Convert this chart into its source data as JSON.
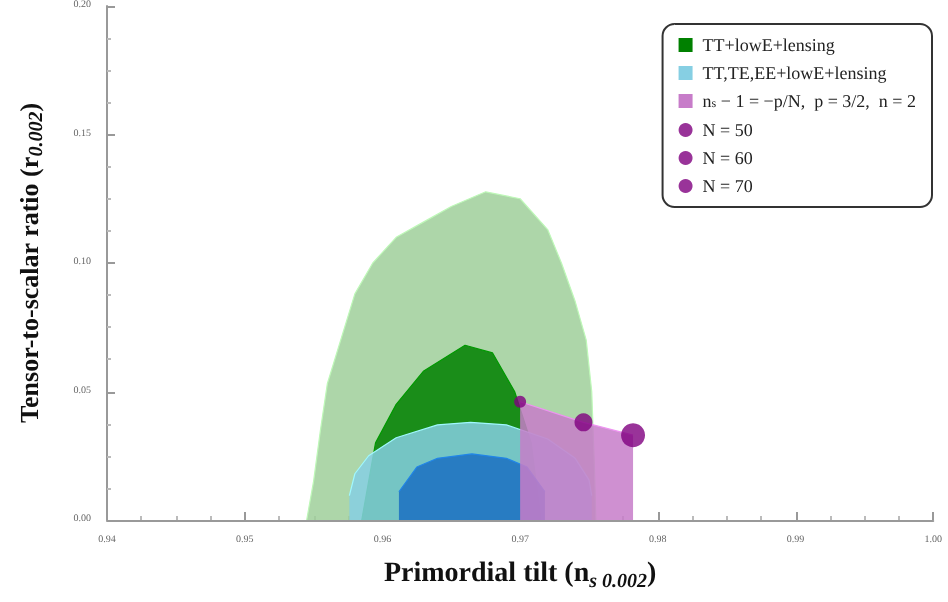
{
  "chart_data": {
    "type": "area",
    "xlabel": "Primordial tilt (n$_{s 0.002}$)",
    "ylabel": "Tensor-to-scalar ratio (r$_{0.002}$)",
    "xlim": [
      0.94,
      1.0
    ],
    "xticks": [
      0.94,
      0.95,
      0.96,
      0.97,
      0.98,
      0.99,
      {
        "value": 1.0,
        "label": "1.00"
      }
    ],
    "ylim": [
      0,
      0.2
    ],
    "yticks": [
      {
        "value": 0,
        "label": "0.00"
      },
      0.05,
      {
        "value": 0.1,
        "label": "0.10"
      },
      0.15,
      {
        "value": 0.2,
        "label": "0.20"
      }
    ],
    "grid": false,
    "legend": "top right",
    "series": [
      {
        "color": "#9fcf9a",
        "x": [
          0.9545,
          0.955,
          0.9555,
          0.956,
          0.958,
          0.9593,
          0.961,
          0.963,
          0.965,
          0.9675,
          0.97,
          0.972,
          0.973,
          0.974,
          0.9748,
          0.9752,
          0.9754,
          0.9755
        ],
        "values": [
          0,
          0.015,
          0.035,
          0.053,
          0.088,
          0.1,
          0.11,
          0.116,
          0.122,
          0.1277,
          0.125,
          0.113,
          0.1,
          0.085,
          0.07,
          0.05,
          0.02,
          0
        ]
      },
      {
        "name": "TT+lowE+lensing",
        "color": "#008000",
        "x": [
          0.9585,
          0.9595,
          0.961,
          0.963,
          0.966,
          0.968,
          0.9696,
          0.9708,
          0.9715
        ],
        "values": [
          0,
          0.03,
          0.045,
          0.058,
          0.068,
          0.065,
          0.05,
          0.03,
          0
        ]
      },
      {
        "name": "TT,TE,EE+lowE+lensing",
        "color": "#86cfe3",
        "x": [
          0.9576,
          0.958,
          0.959,
          0.961,
          0.964,
          0.9664,
          0.969,
          0.972,
          0.974,
          0.975,
          0.9752
        ],
        "values": [
          0.0095,
          0.018,
          0.025,
          0.032,
          0.037,
          0.038,
          0.037,
          0.0315,
          0.024,
          0.0156,
          0.0095
        ]
      },
      {
        "color": "#1b6fc2",
        "x": [
          0.9612,
          0.9625,
          0.964,
          0.9665,
          0.969,
          0.9705,
          0.9718
        ],
        "values": [
          0.011,
          0.0206,
          0.024,
          0.0257,
          0.024,
          0.0206,
          0.011
        ]
      },
      {
        "name": "n$_{s}$ − 1 = −p/N,  p = 3/2,  n = 2",
        "color": "#c77cc9",
        "x": [
          0.97,
          0.9746,
          0.9782
        ],
        "values": [
          0.046,
          0.038,
          0.033
        ]
      },
      {
        "type": "scatter",
        "name": "N = 50",
        "color": "#800080",
        "x": [
          0.97
        ],
        "values": [
          0.046
        ]
      },
      {
        "type": "scatter",
        "name": "N = 60",
        "color": "#800080",
        "x": [
          0.9746
        ],
        "values": [
          0.038
        ]
      },
      {
        "type": "scatter",
        "name": "N = 70",
        "color": "#800080",
        "x": [
          0.9782
        ],
        "values": [
          0.033
        ]
      }
    ]
  }
}
